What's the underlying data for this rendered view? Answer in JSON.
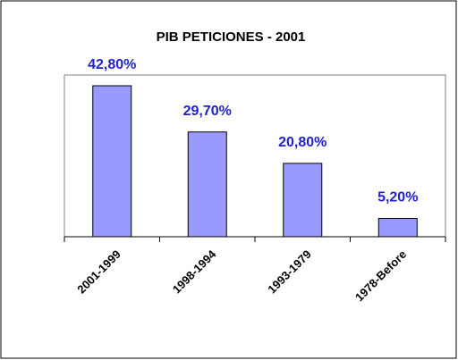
{
  "chart_data": {
    "type": "bar",
    "title": "PIB PETICIONES - 2001",
    "categories": [
      "2001-1999",
      "1998-1994",
      "1993-1979",
      "1978-Before"
    ],
    "values": [
      42.8,
      29.7,
      20.8,
      5.2
    ],
    "value_labels": [
      "42,80%",
      "29,70%",
      "20,80%",
      "5,20%"
    ],
    "color": "#9999ff"
  }
}
